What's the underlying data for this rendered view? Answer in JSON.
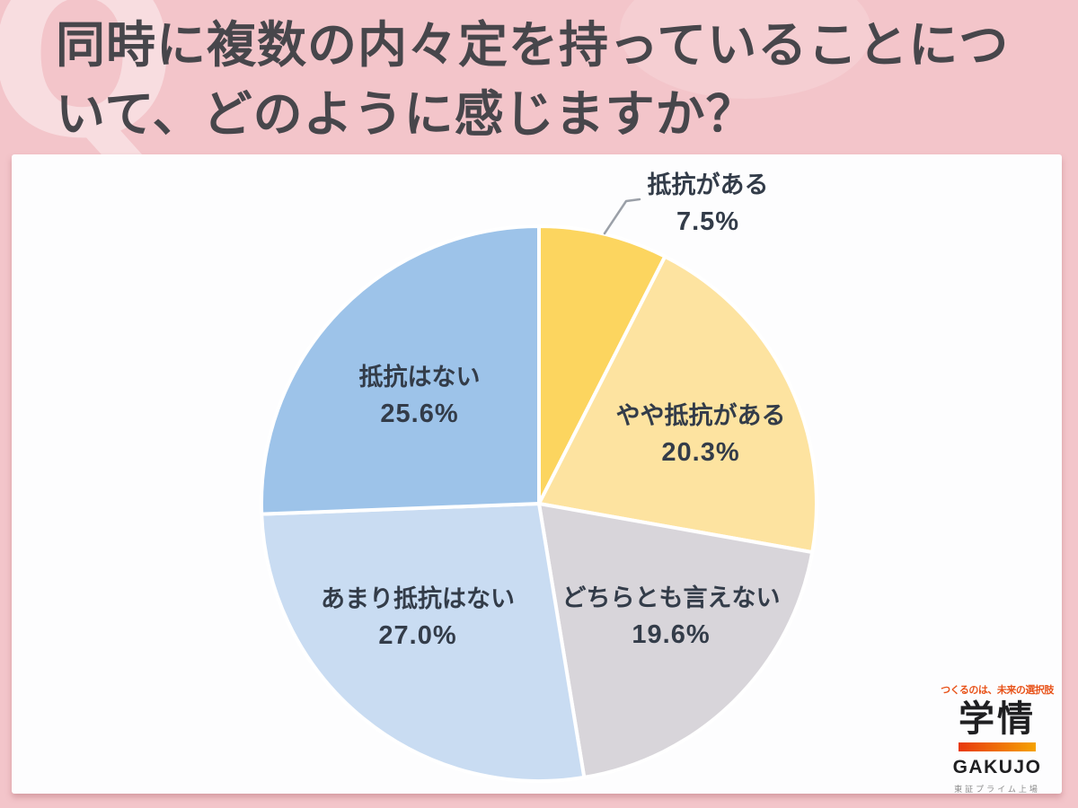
{
  "header": {
    "watermark": "Q",
    "question_full": "同時に複数の内々定を持っていることについて、どのように感じますか？",
    "question_lines": [
      "同時に複数の内々定を持っていることにつ",
      "いて、どのように感じますか？"
    ]
  },
  "chart_data": {
    "type": "pie",
    "title": "同時に複数の内々定を持っていることについて、どのように感じますか？",
    "labels": [
      "抵抗がある",
      "やや抵抗がある",
      "どちらとも言えない",
      "あまり抵抗はない",
      "抵抗はない"
    ],
    "values": [
      7.5,
      20.3,
      19.6,
      27.0,
      25.6
    ],
    "value_labels": [
      "7.5%",
      "20.3%",
      "19.6%",
      "27.0%",
      "25.6%"
    ],
    "colors": [
      "#fcd55f",
      "#fde3a0",
      "#d8d5da",
      "#c9dcf2",
      "#9dc3e9"
    ],
    "start_angle_deg": 0,
    "direction": "clockwise-from-top",
    "slice_border_color": "#ffffff",
    "label_color": "#333c49",
    "leader_line_color": "#9ba0a8",
    "legend_position": "none",
    "outside_labels": [
      "抵抗がある"
    ]
  },
  "logo": {
    "tagline": "つくるのは、未来の選択肢",
    "name": "学情",
    "name_latin": "GAKUJO",
    "listing": "東証プライム上場",
    "tagline_color": "#e8531a",
    "bar_gradient": [
      "#e8380d",
      "#f5a200"
    ]
  },
  "colors": {
    "background_pink": "#f3c5ca",
    "panel_white": "#fdfdfe",
    "title_text": "#47464b"
  }
}
